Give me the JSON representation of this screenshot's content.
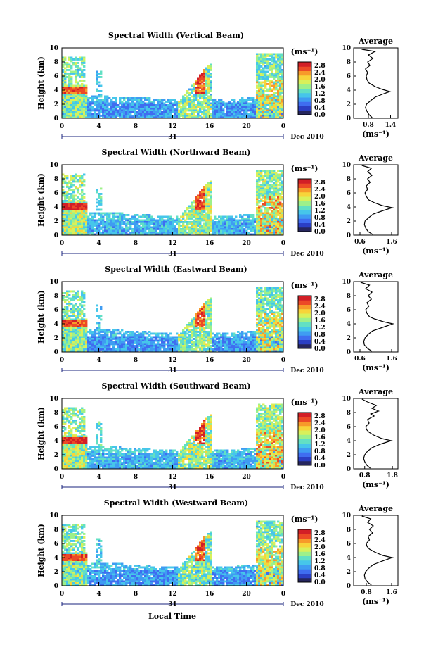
{
  "chart_data": {
    "type": "heatmap",
    "x_ticks": [
      "0",
      "4",
      "8",
      "12",
      "16",
      "20",
      "0"
    ],
    "x_range_hours": [
      0,
      24
    ],
    "date_day": "31",
    "date_label": "Dec 2010",
    "xlabel": "Local Time",
    "ylabel": "Height (km)",
    "y_ticks": [
      "0",
      "2",
      "4",
      "6",
      "8",
      "10"
    ],
    "ylim_km": [
      0,
      10
    ],
    "colorbar": {
      "unit": "(ms⁻¹)",
      "ticks": [
        "0.0",
        "0.4",
        "0.8",
        "1.2",
        "1.6",
        "2.0",
        "2.4",
        "2.8"
      ],
      "range": [
        0,
        3.0
      ],
      "colors": [
        "#26265e",
        "#2b3fc4",
        "#3f6df0",
        "#3f9cf2",
        "#46c6ea",
        "#62e0c4",
        "#9ef08a",
        "#d9f05a",
        "#f7d43a",
        "#f79a2a",
        "#ec4a26",
        "#d21f26"
      ]
    },
    "panels": [
      {
        "title": "Spectral Width (Vertical Beam)",
        "avg_title": "Average",
        "avg_xlabel": "(ms⁻¹)",
        "avg_ticks": [
          "0.8",
          "1.4"
        ],
        "avg_xlim": [
          0.4,
          1.6
        ],
        "avg_profile": [
          [
            0.1,
            0.9
          ],
          [
            0.5,
            0.82
          ],
          [
            1,
            0.76
          ],
          [
            1.5,
            0.72
          ],
          [
            2,
            0.75
          ],
          [
            2.5,
            0.86
          ],
          [
            3,
            0.98
          ],
          [
            3.5,
            1.22
          ],
          [
            3.8,
            1.38
          ],
          [
            4.1,
            1.18
          ],
          [
            4.5,
            0.98
          ],
          [
            5,
            0.82
          ],
          [
            5.5,
            0.76
          ],
          [
            6,
            0.74
          ],
          [
            6.5,
            0.78
          ],
          [
            7,
            0.72
          ],
          [
            7.5,
            0.84
          ],
          [
            8,
            0.78
          ],
          [
            8.5,
            0.92
          ],
          [
            9,
            0.8
          ],
          [
            9.5,
            0.98
          ],
          [
            9.8,
            0.62
          ]
        ]
      },
      {
        "title": "Spectral Width (Northward Beam)",
        "avg_title": "Average",
        "avg_xlabel": "(ms⁻¹)",
        "avg_ticks": [
          "0.6",
          "1.6"
        ],
        "avg_xlim": [
          0.4,
          1.8
        ],
        "avg_profile": [
          [
            0.1,
            1.0
          ],
          [
            0.5,
            0.86
          ],
          [
            1,
            0.78
          ],
          [
            1.5,
            0.74
          ],
          [
            2,
            0.76
          ],
          [
            2.5,
            0.88
          ],
          [
            3,
            1.02
          ],
          [
            3.5,
            1.34
          ],
          [
            3.9,
            1.62
          ],
          [
            4.2,
            1.3
          ],
          [
            4.6,
            1.06
          ],
          [
            5,
            0.88
          ],
          [
            5.5,
            0.8
          ],
          [
            6,
            0.76
          ],
          [
            6.5,
            0.84
          ],
          [
            7,
            0.8
          ],
          [
            7.5,
            0.92
          ],
          [
            8,
            0.84
          ],
          [
            8.5,
            0.98
          ],
          [
            9,
            0.84
          ],
          [
            9.5,
            0.96
          ],
          [
            9.9,
            0.66
          ]
        ]
      },
      {
        "title": "Spectral Width (Eastward Beam)",
        "avg_title": "Average",
        "avg_xlabel": "(ms⁻¹)",
        "avg_ticks": [
          "0.6",
          "1.6"
        ],
        "avg_xlim": [
          0.4,
          1.8
        ],
        "avg_profile": [
          [
            0.1,
            0.98
          ],
          [
            0.5,
            0.84
          ],
          [
            1,
            0.74
          ],
          [
            1.5,
            0.72
          ],
          [
            2,
            0.76
          ],
          [
            2.5,
            0.86
          ],
          [
            3,
            1.0
          ],
          [
            3.5,
            1.32
          ],
          [
            4,
            1.64
          ],
          [
            4.3,
            1.34
          ],
          [
            4.7,
            1.06
          ],
          [
            5,
            0.9
          ],
          [
            5.5,
            0.82
          ],
          [
            6,
            0.78
          ],
          [
            6.5,
            0.88
          ],
          [
            7,
            0.82
          ],
          [
            7.5,
            0.96
          ],
          [
            8,
            0.86
          ],
          [
            8.5,
            0.98
          ],
          [
            9,
            0.78
          ],
          [
            9.5,
            0.9
          ],
          [
            9.9,
            0.62
          ]
        ]
      },
      {
        "title": "Spectral Width (Southward Beam)",
        "avg_title": "Average",
        "avg_xlabel": "(ms⁻¹)",
        "avg_ticks": [
          "0.8",
          "1.8"
        ],
        "avg_xlim": [
          0.4,
          2.0
        ],
        "avg_profile": [
          [
            0.1,
            1.0
          ],
          [
            0.5,
            0.88
          ],
          [
            1,
            0.8
          ],
          [
            1.5,
            0.76
          ],
          [
            2,
            0.8
          ],
          [
            2.5,
            0.9
          ],
          [
            3,
            1.06
          ],
          [
            3.5,
            1.36
          ],
          [
            4,
            1.76
          ],
          [
            4.3,
            1.42
          ],
          [
            4.8,
            1.12
          ],
          [
            5.2,
            0.96
          ],
          [
            5.6,
            0.86
          ],
          [
            6,
            0.84
          ],
          [
            6.5,
            0.96
          ],
          [
            7,
            0.9
          ],
          [
            7.5,
            1.14
          ],
          [
            7.8,
            1.02
          ],
          [
            8.2,
            1.3
          ],
          [
            8.6,
            1.06
          ],
          [
            9,
            1.22
          ],
          [
            9.5,
            0.9
          ],
          [
            9.9,
            0.7
          ]
        ]
      },
      {
        "title": "Spectral Width (Westward Beam)",
        "avg_title": "Average",
        "avg_xlabel": "(ms⁻¹)",
        "avg_ticks": [
          "0.8",
          "1.6"
        ],
        "avg_xlim": [
          0.4,
          1.8
        ],
        "avg_profile": [
          [
            0.1,
            0.96
          ],
          [
            0.5,
            0.84
          ],
          [
            1,
            0.76
          ],
          [
            1.5,
            0.74
          ],
          [
            2,
            0.78
          ],
          [
            2.5,
            0.88
          ],
          [
            3,
            1.02
          ],
          [
            3.5,
            1.3
          ],
          [
            4,
            1.62
          ],
          [
            4.3,
            1.32
          ],
          [
            4.8,
            1.06
          ],
          [
            5.2,
            0.9
          ],
          [
            5.6,
            0.82
          ],
          [
            6,
            0.8
          ],
          [
            6.5,
            0.9
          ],
          [
            7,
            0.86
          ],
          [
            7.5,
            1.0
          ],
          [
            8,
            0.9
          ],
          [
            8.5,
            1.02
          ],
          [
            9,
            0.84
          ],
          [
            9.5,
            0.94
          ],
          [
            9.9,
            0.66
          ]
        ]
      }
    ]
  }
}
